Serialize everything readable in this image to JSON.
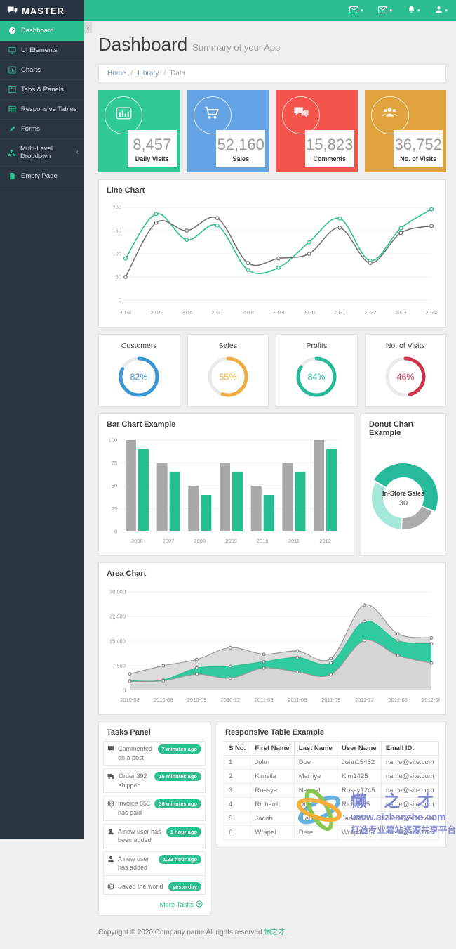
{
  "app": {
    "brand": "MASTER"
  },
  "topbar": {
    "dropdowns": [
      {
        "name": "messages-dropdown",
        "icon": "envelope-icon"
      },
      {
        "name": "inbox-dropdown",
        "icon": "envelope-icon"
      },
      {
        "name": "notifications-dropdown",
        "icon": "bell-icon"
      },
      {
        "name": "user-dropdown",
        "icon": "user-icon"
      }
    ]
  },
  "sidebar": {
    "items": [
      {
        "label": "Dashboard",
        "icon": "dashboard-icon",
        "active": true
      },
      {
        "label": "UI Elements",
        "icon": "monitor-icon"
      },
      {
        "label": "Charts",
        "icon": "chart-icon"
      },
      {
        "label": "Tabs & Panels",
        "icon": "panels-icon"
      },
      {
        "label": "Responsive Tables",
        "icon": "table-icon"
      },
      {
        "label": "Forms",
        "icon": "pencil-icon"
      },
      {
        "label": "Multi-Level Dropdown",
        "icon": "sitemap-icon",
        "chevron": "‹"
      },
      {
        "label": "Empty Page",
        "icon": "file-icon"
      }
    ]
  },
  "page": {
    "title": "Dashboard",
    "subtitle": "Summary of your App",
    "breadcrumb": [
      "Home",
      "Library",
      "Data"
    ]
  },
  "stats": [
    {
      "value": "8,457",
      "label": "Daily Visits",
      "color": "#30c893",
      "icon": "bar-chart-icon"
    },
    {
      "value": "52,160",
      "label": "Sales",
      "color": "#64a3e4",
      "icon": "cart-icon"
    },
    {
      "value": "15,823",
      "label": "Comments",
      "color": "#f4544c",
      "icon": "comments-icon"
    },
    {
      "value": "36,752",
      "label": "No. of Visits",
      "color": "#e0a33e",
      "icon": "users-icon"
    }
  ],
  "chart_data": [
    {
      "id": "line",
      "type": "line",
      "title": "Line Chart",
      "x": [
        "2014",
        "2015",
        "2016",
        "2017",
        "2018",
        "2019",
        "2020",
        "2021",
        "2022",
        "2023",
        "2024"
      ],
      "series": [
        {
          "name": "teal-series",
          "color": "#2cbf90",
          "values": [
            90,
            186,
            130,
            161,
            65,
            70,
            125,
            176,
            85,
            155,
            196
          ]
        },
        {
          "name": "gray-series",
          "color": "#757575",
          "values": [
            50,
            167,
            150,
            177,
            80,
            90,
            100,
            156,
            80,
            145,
            160
          ]
        }
      ],
      "ylim": [
        0,
        200
      ],
      "yticks": [
        0,
        50,
        100,
        150,
        200
      ],
      "grid": true,
      "legend": "none"
    },
    {
      "id": "gauges",
      "type": "gauge-set",
      "items": [
        {
          "label": "Customers",
          "percent": 82,
          "color": "#3b97d3"
        },
        {
          "label": "Sales",
          "percent": 55,
          "color": "#edae41"
        },
        {
          "label": "Profits",
          "percent": 84,
          "color": "#26b99a"
        },
        {
          "label": "No. of Visits",
          "percent": 46,
          "color": "#d2334c"
        }
      ]
    },
    {
      "id": "bar",
      "type": "bar",
      "title": "Bar Chart Example",
      "categories": [
        "2006",
        "2007",
        "2008",
        "2009",
        "2010",
        "2011",
        "2012"
      ],
      "series": [
        {
          "name": "gray-series",
          "color": "#a9a9a9",
          "values": [
            100,
            75,
            50,
            75,
            50,
            75,
            100
          ]
        },
        {
          "name": "teal-series",
          "color": "#26be8f",
          "values": [
            90,
            65,
            40,
            65,
            40,
            65,
            90
          ]
        }
      ],
      "ylim": [
        0,
        100
      ],
      "yticks": [
        0,
        25,
        50,
        75,
        100
      ],
      "grid": true,
      "legend": "none"
    },
    {
      "id": "donut",
      "type": "pie",
      "title": "Donut Chart Example",
      "center_label": "In-Store Sales",
      "center_value": "30",
      "start_angle": 300,
      "slices": [
        {
          "value": 30,
          "color": "#26b99a"
        },
        {
          "value": 12,
          "color": "#ababab"
        },
        {
          "value": 20,
          "color": "#a5e7d8"
        }
      ]
    },
    {
      "id": "area",
      "type": "area",
      "title": "Area Chart",
      "x": [
        "2010-03",
        "2010-06",
        "2010-09",
        "2010-12",
        "2011-03",
        "2011-06",
        "2011-09",
        "2011-12",
        "2012-03",
        "2012-06"
      ],
      "series": [
        {
          "name": "top-gray",
          "fill": "#dbdbdb",
          "line": "#9a9a9a",
          "values": [
            5000,
            7500,
            9400,
            13000,
            11000,
            12000,
            9700,
            26000,
            17200,
            16000
          ]
        },
        {
          "name": "mid-teal",
          "fill": "#2fca9d",
          "line": "#28bd92",
          "values": [
            2900,
            3100,
            6800,
            7300,
            8700,
            10000,
            8400,
            21000,
            15100,
            14200
          ]
        },
        {
          "name": "low-gray",
          "fill": "#d6d6d6",
          "line": "#9a9a9a",
          "values": [
            2700,
            2900,
            4900,
            3700,
            6800,
            5600,
            4800,
            15200,
            10600,
            8300
          ]
        }
      ],
      "ylim": [
        0,
        30000
      ],
      "yticks": [
        0,
        7500,
        15000,
        22500,
        30000
      ],
      "ytick_labels": [
        "0",
        "7,500",
        "15,000",
        "22,500",
        "30,000"
      ],
      "grid": true,
      "legend": "none"
    }
  ],
  "tasks": {
    "title": "Tasks Panel",
    "items": [
      {
        "icon": "comment-icon",
        "text": "Commented on a post",
        "badge": "7 minutes ago"
      },
      {
        "icon": "truck-icon",
        "text": "Order 392 shipped",
        "badge": "16 minutes ago"
      },
      {
        "icon": "globe-icon",
        "text": "Invoice 653 has paid",
        "badge": "36 minutes ago"
      },
      {
        "icon": "person-icon",
        "text": "A new user has been added",
        "badge": "1 hour ago"
      },
      {
        "icon": "person-icon",
        "text": "A new user has added",
        "badge": "1.23 hour ago"
      },
      {
        "icon": "globe-icon",
        "text": "Saved the world",
        "badge": "yesterday"
      }
    ],
    "more_label": "More Tasks"
  },
  "table": {
    "title": "Responsive Table Example",
    "headers": [
      "S No.",
      "First Name",
      "Last Name",
      "User Name",
      "Email ID."
    ],
    "rows": [
      [
        "1",
        "John",
        "Doe",
        "John15482",
        "name@site.com"
      ],
      [
        "2",
        "Kimsila",
        "Marriye",
        "Kim1425",
        "name@site.com"
      ],
      [
        "3",
        "Rossye",
        "Nermal",
        "Rossy1245",
        "name@site.com"
      ],
      [
        "4",
        "Richard",
        "Orieal",
        "Rich5685",
        "name@site.com"
      ],
      [
        "5",
        "Jacob",
        "Hielsar",
        "Jac4587",
        "name@site.com"
      ],
      [
        "6",
        "Wrapel",
        "Dere",
        "Wrap4585",
        "name@site.com"
      ]
    ]
  },
  "footer": {
    "prefix": "Copyright © 2020.Company name All rights reserved ",
    "link": "懒之才",
    "suffix": "."
  },
  "watermark": {
    "title": "懒 之 才",
    "url": "www.aizhanzhe.com",
    "tagline": "打造专业建站资源共享平台"
  },
  "colors": {
    "accent": "#2cbd8e",
    "sidebar_bg": "#2a3542",
    "brand_bg": "#273240",
    "page_bg": "#efefef"
  }
}
